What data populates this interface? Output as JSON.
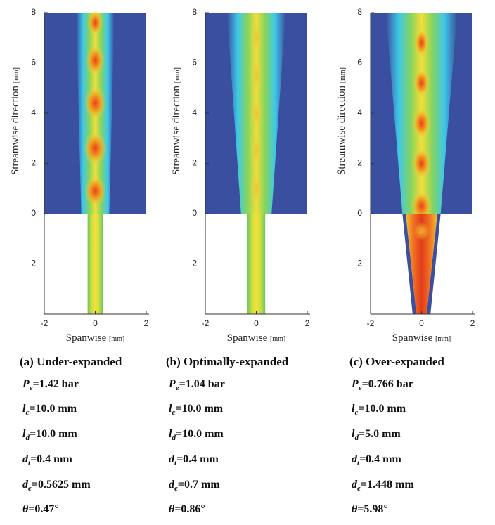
{
  "panels": [
    {
      "caption_label": "(a)",
      "caption": "Under-expanded",
      "x_label": "Spanwise",
      "x_unit": "[mm]",
      "y_label": "Streamwise direction",
      "y_unit": "[mm]",
      "xlim": [
        -2,
        2
      ],
      "ylim": [
        -4,
        8
      ],
      "xticks": [
        -2,
        0,
        2
      ],
      "yticks": [
        -2,
        0,
        2,
        4,
        6,
        8
      ],
      "params": [
        {
          "symbol": "P",
          "sub": "e",
          "value": "=1.42 bar"
        },
        {
          "symbol": "l",
          "sub": "c",
          "value": "=10.0 mm"
        },
        {
          "symbol": "l",
          "sub": "d",
          "value": "=10.0 mm"
        },
        {
          "symbol": "d",
          "sub": "t",
          "value": "=0.4 mm"
        },
        {
          "symbol": "d",
          "sub": "e",
          "value": "=0.5625 mm"
        },
        {
          "symbol": "θ",
          "value": "=0.47°"
        }
      ]
    },
    {
      "caption_label": "(b)",
      "caption": "Optimally-expanded",
      "x_label": "Spanwise",
      "x_unit": "[mm]",
      "y_label": "Streamwise direction",
      "y_unit": "[mm]",
      "xlim": [
        -2,
        2
      ],
      "ylim": [
        -4,
        8
      ],
      "xticks": [
        -2,
        0,
        2
      ],
      "yticks": [
        -2,
        0,
        2,
        4,
        6,
        8
      ],
      "params": [
        {
          "symbol": "P",
          "sub": "e",
          "value": "=1.04 bar"
        },
        {
          "symbol": "l",
          "sub": "c",
          "value": "=10.0 mm"
        },
        {
          "symbol": "l",
          "sub": "d",
          "value": "=10.0 mm"
        },
        {
          "symbol": "d",
          "sub": "t",
          "value": "=0.4 mm"
        },
        {
          "symbol": "d",
          "sub": "e",
          "value": "=0.7 mm"
        },
        {
          "symbol": "θ",
          "value": "=0.86°"
        }
      ]
    },
    {
      "caption_label": "(c)",
      "caption": "Over-expanded",
      "x_label": "Spanwise",
      "x_unit": "[mm]",
      "y_label": "Streamwise direction",
      "y_unit": "[mm]",
      "xlim": [
        -2,
        2
      ],
      "ylim": [
        -4,
        8
      ],
      "xticks": [
        -2,
        0,
        2
      ],
      "yticks": [
        -2,
        0,
        2,
        4,
        6,
        8
      ],
      "params": [
        {
          "symbol": "P",
          "sub": "e",
          "value": "=0.766 bar"
        },
        {
          "symbol": "l",
          "sub": "c",
          "value": "=10.0 mm"
        },
        {
          "symbol": "l",
          "sub": "d",
          "value": "=5.0 mm"
        },
        {
          "symbol": "d",
          "sub": "t",
          "value": "=0.4 mm"
        },
        {
          "symbol": "d",
          "sub": "e",
          "value": "=1.448 mm"
        },
        {
          "symbol": "θ",
          "value": "=5.98°"
        }
      ]
    }
  ]
}
